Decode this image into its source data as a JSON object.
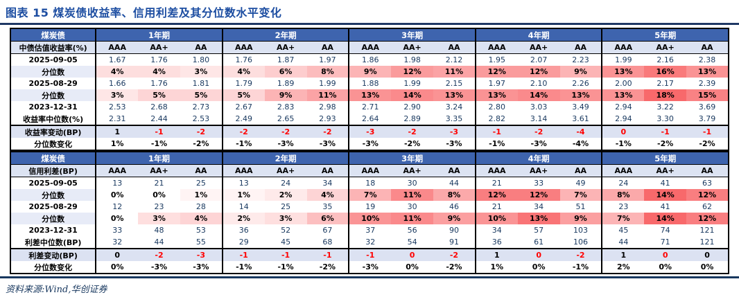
{
  "figure": {
    "title": "图表 15  煤炭债收益率、信用利差及其分位数水平变化",
    "source": "资料来源:Wind,华创证券"
  },
  "colors": {
    "header_blue": "#3e64ae",
    "periwinkle_row": "#dce2f2",
    "label_periwinkle": "#e7ebf7",
    "navy_text": "#17375e",
    "title_blue": "#1c4da1",
    "rule_navy": "#1f3864",
    "negative_red": "#ff0000",
    "heat_max_red": "#f8696b"
  },
  "chart_data": {
    "type": "table",
    "tables": [
      {
        "corner_label": "煤炭债",
        "measure_label": "中债估值收益率(%)",
        "groups": [
          "1年期",
          "2年期",
          "3年期",
          "4年期",
          "5年期"
        ],
        "ratings": [
          "AAA",
          "AA+",
          "AA"
        ],
        "pct_max": 18,
        "rows": [
          {
            "label": "2025-09-05",
            "type": "value",
            "cells": [
              "1.67",
              "1.76",
              "1.80",
              "1.76",
              "1.87",
              "1.97",
              "1.86",
              "1.98",
              "2.12",
              "1.95",
              "2.07",
              "2.23",
              "1.99",
              "2.16",
              "2.38"
            ]
          },
          {
            "label": "分位数",
            "type": "pct",
            "cells": [
              4,
              4,
              3,
              4,
              6,
              8,
              9,
              12,
              11,
              12,
              12,
              9,
              13,
              16,
              13
            ]
          },
          {
            "label": "2025-08-29",
            "type": "value",
            "cells": [
              "1.66",
              "1.76",
              "1.81",
              "1.79",
              "1.89",
              "1.99",
              "1.88",
              "1.99",
              "2.15",
              "1.97",
              "2.10",
              "2.26",
              "2.00",
              "2.17",
              "2.39"
            ]
          },
          {
            "label": "分位数",
            "type": "pct",
            "cells": [
              3,
              5,
              5,
              5,
              9,
              11,
              13,
              14,
              13,
              13,
              14,
              13,
              13,
              18,
              15
            ]
          },
          {
            "label": "2023-12-31",
            "type": "value",
            "cells": [
              "2.53",
              "2.68",
              "2.73",
              "2.67",
              "2.83",
              "2.98",
              "2.71",
              "2.90",
              "3.24",
              "2.80",
              "3.03",
              "3.49",
              "2.94",
              "3.22",
              "3.69"
            ]
          },
          {
            "label": "收益率中位数(%)",
            "type": "value",
            "median": true,
            "cells": [
              "2.31",
              "2.44",
              "2.53",
              "2.49",
              "2.65",
              "2.93",
              "2.64",
              "2.89",
              "3.35",
              "2.82",
              "3.14",
              "3.61",
              "2.94",
              "3.30",
              "3.79"
            ]
          },
          {
            "label": "收益率变动(BP)",
            "type": "change",
            "cells": [
              "1",
              "-1",
              "-2",
              "-2",
              "-2",
              "-2",
              "-3",
              "-2",
              "-3",
              "-1",
              "-2",
              "-4",
              "0",
              "-1",
              "-1"
            ],
            "red": [
              false,
              true,
              true,
              true,
              true,
              true,
              true,
              true,
              true,
              true,
              true,
              true,
              true,
              true,
              true
            ]
          },
          {
            "label": "分位数变化",
            "type": "pctchange",
            "cells": [
              "1%",
              "-1%",
              "-2%",
              "-1%",
              "-3%",
              "-3%",
              "-3%",
              "-2%",
              "-3%",
              "-1%",
              "-3%",
              "-4%",
              "-1%",
              "-2%",
              "-2%"
            ]
          }
        ]
      },
      {
        "corner_label": "煤炭债",
        "measure_label": "信用利差(BP)",
        "groups": [
          "1年期",
          "2年期",
          "3年期",
          "4年期",
          "5年期"
        ],
        "ratings": [
          "AAA",
          "AA+",
          "AA"
        ],
        "pct_max": 14,
        "rows": [
          {
            "label": "2025-09-05",
            "type": "value",
            "cells": [
              "13",
              "21",
              "25",
              "13",
              "24",
              "34",
              "18",
              "30",
              "44",
              "21",
              "33",
              "49",
              "24",
              "41",
              "63"
            ]
          },
          {
            "label": "分位数",
            "type": "pct",
            "cells": [
              0,
              0,
              1,
              1,
              2,
              4,
              7,
              11,
              8,
              12,
              12,
              7,
              8,
              14,
              12
            ]
          },
          {
            "label": "2025-08-29",
            "type": "value",
            "cells": [
              "12",
              "23",
              "28",
              "14",
              "25",
              "35",
              "19",
              "30",
              "46",
              "21",
              "34",
              "51",
              "23",
              "41",
              "62"
            ]
          },
          {
            "label": "分位数",
            "type": "pct",
            "cells": [
              0,
              3,
              4,
              2,
              3,
              6,
              10,
              11,
              9,
              10,
              13,
              9,
              7,
              14,
              12
            ]
          },
          {
            "label": "2023-12-31",
            "type": "value",
            "cells": [
              "33",
              "48",
              "53",
              "36",
              "52",
              "67",
              "37",
              "56",
              "90",
              "34",
              "57",
              "103",
              "45",
              "74",
              "121"
            ]
          },
          {
            "label": "利差中位数(BP)",
            "type": "value",
            "median": true,
            "cells": [
              "32",
              "44",
              "55",
              "29",
              "45",
              "68",
              "32",
              "54",
              "91",
              "36",
              "61",
              "106",
              "44",
              "71",
              "121"
            ]
          },
          {
            "label": "利差变动(BP)",
            "type": "change",
            "cells": [
              "0",
              "-2",
              "-3",
              "-1",
              "-1",
              "-1",
              "-1",
              "0",
              "-2",
              "1",
              "0",
              "-2",
              "1",
              "0",
              "0"
            ],
            "red": [
              false,
              true,
              true,
              true,
              true,
              true,
              true,
              true,
              true,
              false,
              true,
              true,
              false,
              true,
              false
            ]
          },
          {
            "label": "分位数变化",
            "type": "pctchange",
            "cells": [
              "0%",
              "-3%",
              "-3%",
              "-1%",
              "-1%",
              "-2%",
              "-3%",
              "0%",
              "-2%",
              "1%",
              "0%",
              "-1%",
              "2%",
              "0%",
              "0%"
            ]
          }
        ]
      }
    ]
  }
}
